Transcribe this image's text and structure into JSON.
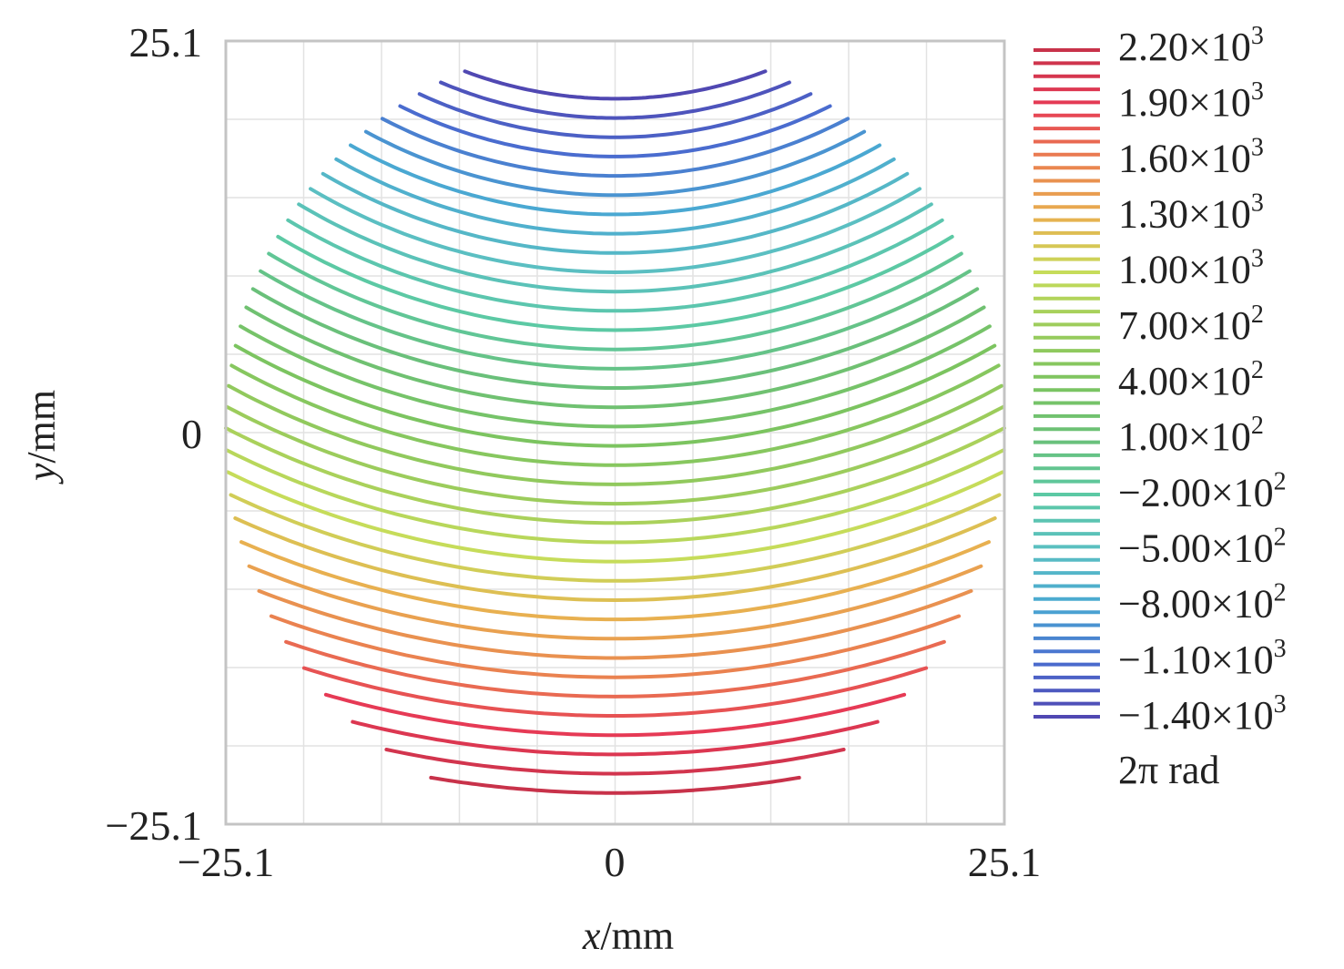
{
  "chart_data": {
    "type": "contour",
    "title": "",
    "xlabel_var": "x",
    "xlabel_unit": "/mm",
    "ylabel_var": "y",
    "ylabel_unit": "/mm",
    "xlim": [
      -25.1,
      25.1
    ],
    "ylim": [
      -25.1,
      25.1
    ],
    "x_ticks": [
      "−25.1",
      "0",
      "25.1"
    ],
    "y_ticks": [
      "25.1",
      "0",
      "−25.1"
    ],
    "grid": true,
    "aperture": "circular",
    "aperture_radius": 25.1,
    "contour_count": 37,
    "colorbar": {
      "position": "right",
      "unit": "2π rad",
      "levels": [
        {
          "mantissa": "2.20",
          "exp": "3",
          "value": 2200
        },
        {
          "mantissa": "1.90",
          "exp": "3",
          "value": 1900
        },
        {
          "mantissa": "1.60",
          "exp": "3",
          "value": 1600
        },
        {
          "mantissa": "1.30",
          "exp": "3",
          "value": 1300
        },
        {
          "mantissa": "1.00",
          "exp": "3",
          "value": 1000
        },
        {
          "mantissa": "7.00",
          "exp": "2",
          "value": 700
        },
        {
          "mantissa": "4.00",
          "exp": "2",
          "value": 400
        },
        {
          "mantissa": "1.00",
          "exp": "2",
          "value": 100
        },
        {
          "mantissa": "−2.00",
          "exp": "2",
          "value": -200
        },
        {
          "mantissa": "−5.00",
          "exp": "2",
          "value": -500
        },
        {
          "mantissa": "−8.00",
          "exp": "2",
          "value": -800
        },
        {
          "mantissa": "−1.10",
          "exp": "3",
          "value": -1100
        },
        {
          "mantissa": "−1.40",
          "exp": "3",
          "value": -1400
        }
      ],
      "colors_top_to_bottom": [
        "#c8324a",
        "#e63a55",
        "#ea8250",
        "#e8b050",
        "#c6dc5a",
        "#9ccc5c",
        "#7cc460",
        "#6ac07a",
        "#5cc9a4",
        "#5bbfc2",
        "#4aa8d2",
        "#4a6ccf",
        "#5048b2"
      ]
    }
  }
}
